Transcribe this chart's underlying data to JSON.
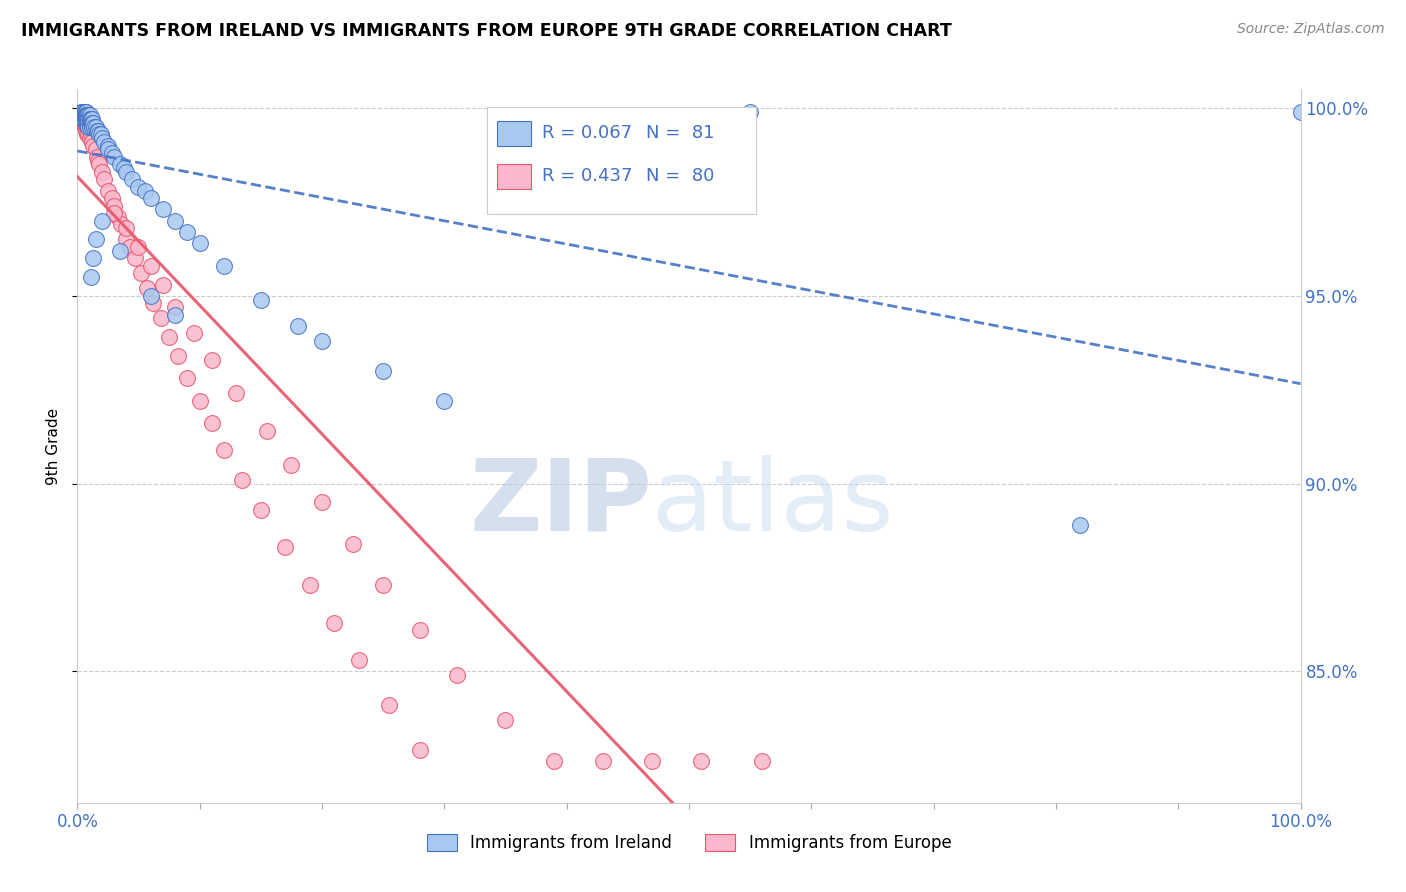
{
  "title": "IMMIGRANTS FROM IRELAND VS IMMIGRANTS FROM EUROPE 9TH GRADE CORRELATION CHART",
  "source": "Source: ZipAtlas.com",
  "ylabel": "9th Grade",
  "xlim": [
    0.0,
    1.0
  ],
  "ylim": [
    0.815,
    1.005
  ],
  "trendline1_color": "#4472C4",
  "trendline2_color": "#E8536A",
  "scatter1_facecolor": "#A8C8F0",
  "scatter1_edgecolor": "#4472C4",
  "scatter2_facecolor": "#F9B8CC",
  "scatter2_edgecolor": "#E8536A",
  "watermark_zip_color": "#C8D8F0",
  "watermark_atlas_color": "#C8D8F0",
  "grid_color": "#CCCCCC",
  "yticks": [
    0.85,
    0.9,
    0.95,
    1.0
  ],
  "ytick_labels": [
    "85.0%",
    "90.0%",
    "95.0%",
    "100.0%"
  ],
  "xtick_left_label": "0.0%",
  "xtick_right_label": "100.0%",
  "legend_r1_text": "R = 0.067",
  "legend_n1_text": "N =  81",
  "legend_r2_text": "R = 0.437",
  "legend_n2_text": "N =  80",
  "legend_color_r": "#4472C4",
  "legend_color_n": "#333333",
  "bottom_legend1": "Immigrants from Ireland",
  "bottom_legend2": "Immigrants from Europe",
  "ireland_x": [
    0.003,
    0.004,
    0.004,
    0.004,
    0.004,
    0.005,
    0.005,
    0.005,
    0.005,
    0.005,
    0.005,
    0.006,
    0.006,
    0.006,
    0.006,
    0.007,
    0.007,
    0.007,
    0.007,
    0.007,
    0.007,
    0.007,
    0.008,
    0.008,
    0.008,
    0.008,
    0.008,
    0.009,
    0.009,
    0.009,
    0.009,
    0.009,
    0.01,
    0.01,
    0.01,
    0.01,
    0.011,
    0.011,
    0.012,
    0.012,
    0.012,
    0.013,
    0.014,
    0.015,
    0.016,
    0.017,
    0.018,
    0.019,
    0.02,
    0.022,
    0.025,
    0.025,
    0.028,
    0.03,
    0.035,
    0.038,
    0.04,
    0.045,
    0.05,
    0.055,
    0.06,
    0.07,
    0.08,
    0.09,
    0.1,
    0.12,
    0.15,
    0.18,
    0.2,
    0.25,
    0.3,
    0.02,
    0.015,
    0.013,
    0.011,
    0.035,
    0.06,
    0.08,
    0.55,
    0.82,
    1.0
  ],
  "ireland_y": [
    0.999,
    0.999,
    0.999,
    0.998,
    0.998,
    0.999,
    0.999,
    0.998,
    0.998,
    0.998,
    0.997,
    0.999,
    0.998,
    0.998,
    0.997,
    0.999,
    0.998,
    0.998,
    0.997,
    0.997,
    0.996,
    0.996,
    0.998,
    0.998,
    0.997,
    0.997,
    0.996,
    0.998,
    0.997,
    0.997,
    0.996,
    0.995,
    0.998,
    0.997,
    0.996,
    0.995,
    0.997,
    0.996,
    0.997,
    0.996,
    0.995,
    0.996,
    0.995,
    0.995,
    0.994,
    0.994,
    0.993,
    0.993,
    0.992,
    0.991,
    0.99,
    0.989,
    0.988,
    0.987,
    0.985,
    0.984,
    0.983,
    0.981,
    0.979,
    0.978,
    0.976,
    0.973,
    0.97,
    0.967,
    0.964,
    0.958,
    0.949,
    0.942,
    0.938,
    0.93,
    0.922,
    0.97,
    0.965,
    0.96,
    0.955,
    0.962,
    0.95,
    0.945,
    0.999,
    0.889,
    0.999
  ],
  "europe_x": [
    0.003,
    0.004,
    0.004,
    0.005,
    0.005,
    0.006,
    0.006,
    0.006,
    0.007,
    0.007,
    0.007,
    0.008,
    0.008,
    0.008,
    0.009,
    0.009,
    0.01,
    0.01,
    0.011,
    0.012,
    0.013,
    0.015,
    0.016,
    0.017,
    0.018,
    0.02,
    0.022,
    0.025,
    0.028,
    0.03,
    0.033,
    0.036,
    0.04,
    0.043,
    0.047,
    0.052,
    0.057,
    0.062,
    0.068,
    0.075,
    0.082,
    0.09,
    0.1,
    0.11,
    0.12,
    0.135,
    0.15,
    0.17,
    0.19,
    0.21,
    0.23,
    0.255,
    0.28,
    0.03,
    0.04,
    0.05,
    0.06,
    0.07,
    0.08,
    0.095,
    0.11,
    0.13,
    0.155,
    0.175,
    0.2,
    0.225,
    0.25,
    0.28,
    0.31,
    0.35,
    0.39,
    0.43,
    0.47,
    0.51,
    0.56,
    0.005,
    0.006,
    0.007,
    0.35,
    0.43
  ],
  "europe_y": [
    0.998,
    0.997,
    0.997,
    0.997,
    0.996,
    0.997,
    0.996,
    0.995,
    0.996,
    0.995,
    0.994,
    0.996,
    0.995,
    0.993,
    0.995,
    0.993,
    0.994,
    0.992,
    0.993,
    0.991,
    0.99,
    0.989,
    0.987,
    0.986,
    0.985,
    0.983,
    0.981,
    0.978,
    0.976,
    0.974,
    0.971,
    0.969,
    0.965,
    0.963,
    0.96,
    0.956,
    0.952,
    0.948,
    0.944,
    0.939,
    0.934,
    0.928,
    0.922,
    0.916,
    0.909,
    0.901,
    0.893,
    0.883,
    0.873,
    0.863,
    0.853,
    0.841,
    0.829,
    0.972,
    0.968,
    0.963,
    0.958,
    0.953,
    0.947,
    0.94,
    0.933,
    0.924,
    0.914,
    0.905,
    0.895,
    0.884,
    0.873,
    0.861,
    0.849,
    0.837,
    0.826,
    0.826,
    0.826,
    0.826,
    0.826,
    0.999,
    0.999,
    0.999,
    0.998,
    0.997
  ]
}
